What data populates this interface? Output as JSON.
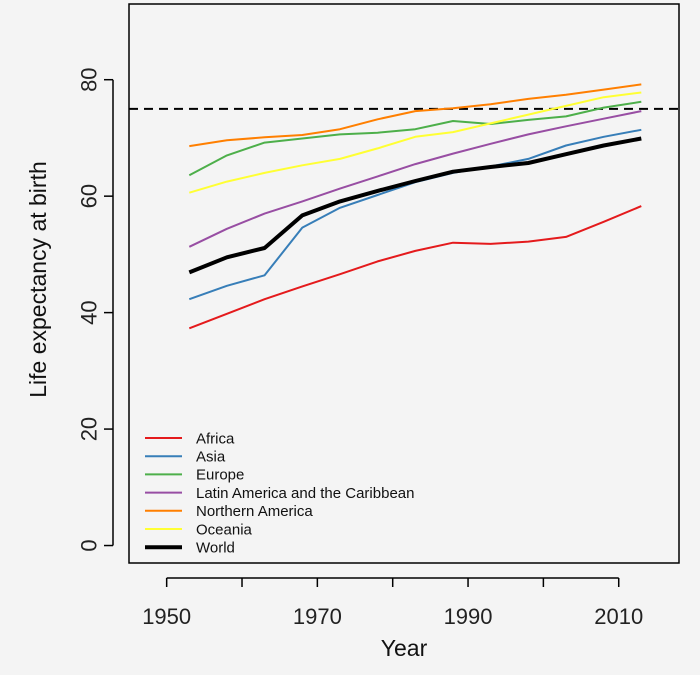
{
  "chart_data": {
    "type": "line",
    "title": "",
    "xlabel": "Year",
    "ylabel": "Life expectancy at birth",
    "xlim": [
      1945,
      2018
    ],
    "ylim": [
      -3,
      93
    ],
    "x_ticks": [
      1950,
      1970,
      1990,
      2010
    ],
    "x_minor_ticks": [
      1950,
      1960,
      1970,
      1980,
      1990,
      2000,
      2010
    ],
    "y_ticks": [
      0,
      20,
      40,
      60,
      80
    ],
    "grid": false,
    "legend_position": "bottom-left",
    "reference_line": {
      "y": 75,
      "style": "dashed",
      "color": "#000000"
    },
    "x": [
      1953,
      1958,
      1963,
      1968,
      1973,
      1978,
      1983,
      1988,
      1993,
      1998,
      2003,
      2008,
      2013
    ],
    "series": [
      {
        "name": "Africa",
        "color": "#e41a1c",
        "width": 2,
        "values": [
          37.3,
          39.8,
          42.3,
          44.5,
          46.6,
          48.8,
          50.6,
          52.0,
          51.8,
          52.2,
          53.0,
          55.6,
          58.3
        ]
      },
      {
        "name": "Asia",
        "color": "#377eb8",
        "width": 2,
        "values": [
          42.3,
          44.6,
          46.4,
          54.6,
          58.0,
          60.2,
          62.4,
          64.0,
          65.1,
          66.4,
          68.7,
          70.2,
          71.4
        ]
      },
      {
        "name": "Europe",
        "color": "#4daf4a",
        "width": 2,
        "values": [
          63.6,
          67.0,
          69.2,
          69.9,
          70.6,
          70.9,
          71.5,
          72.9,
          72.4,
          73.1,
          73.7,
          75.2,
          76.2
        ]
      },
      {
        "name": "Latin America and the Caribbean",
        "color": "#984ea3",
        "width": 2,
        "values": [
          51.3,
          54.4,
          57.0,
          59.1,
          61.3,
          63.4,
          65.5,
          67.3,
          69.0,
          70.6,
          72.0,
          73.3,
          74.6
        ]
      },
      {
        "name": "Northern America",
        "color": "#ff7f00",
        "width": 2,
        "values": [
          68.6,
          69.6,
          70.1,
          70.5,
          71.5,
          73.2,
          74.6,
          75.1,
          75.8,
          76.7,
          77.4,
          78.3,
          79.2
        ]
      },
      {
        "name": "Oceania",
        "color": "#ffff33",
        "width": 2,
        "values": [
          60.6,
          62.5,
          64.0,
          65.3,
          66.4,
          68.2,
          70.2,
          71.0,
          72.5,
          74.0,
          75.5,
          77.0,
          77.8
        ]
      },
      {
        "name": "World",
        "color": "#000000",
        "width": 4,
        "values": [
          46.9,
          49.5,
          51.1,
          56.7,
          59.1,
          60.9,
          62.6,
          64.2,
          65.0,
          65.7,
          67.2,
          68.7,
          69.9
        ]
      }
    ]
  }
}
